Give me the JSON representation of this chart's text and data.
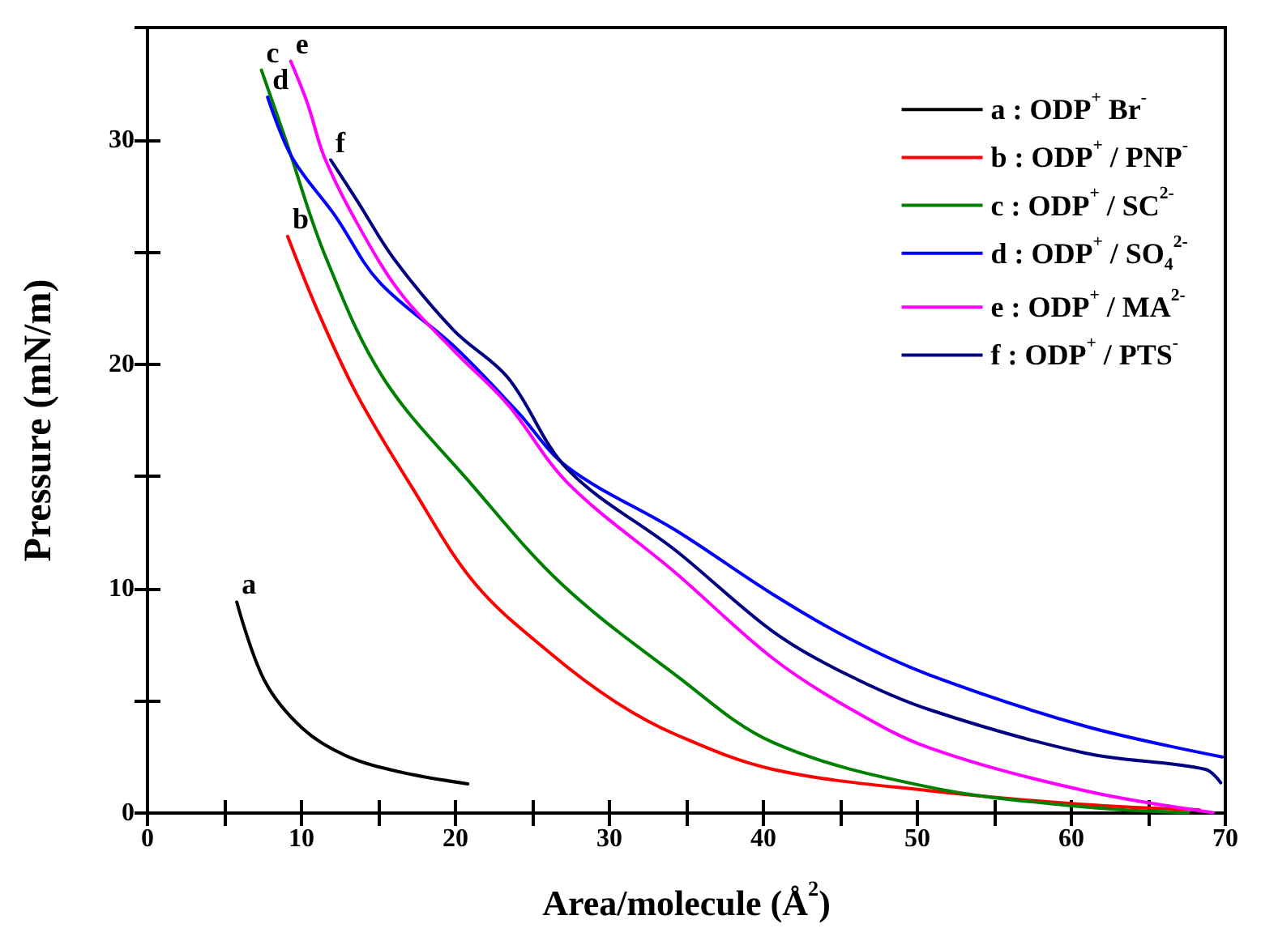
{
  "chart_data": {
    "type": "line",
    "xlabel": "Area/molecule (Å$^{2}$)",
    "ylabel": "Pressure (mN/m)",
    "xlim": [
      0,
      70
    ],
    "ylim": [
      0,
      35
    ],
    "xticks": [
      0,
      {
        "value": 5,
        "label": null
      },
      10,
      {
        "value": 15,
        "label": null
      },
      20,
      {
        "value": 25,
        "label": null
      },
      30,
      {
        "value": 35,
        "label": null
      },
      40,
      {
        "value": 45,
        "label": null
      },
      50,
      {
        "value": 55,
        "label": null
      },
      60,
      {
        "value": 65,
        "label": null
      },
      70
    ],
    "yticks": [
      0,
      {
        "value": 5,
        "label": null
      },
      10,
      {
        "value": 15,
        "label": null
      },
      20,
      {
        "value": 25,
        "label": null
      },
      30,
      {
        "value": 35,
        "label": null
      }
    ],
    "grid": false,
    "legend": "top right",
    "line_style": "solid",
    "marker": "none",
    "series": [
      {
        "name": "a : ODP$^{+}$ Br$^{-}$",
        "color": "#000000",
        "x": [
          5.8,
          7.6,
          10.1,
          12.9,
          16.4,
          20.8
        ],
        "values": [
          9.4,
          5.9,
          3.75,
          2.55,
          1.83,
          1.3
        ]
      },
      {
        "name": "b : ODP$^{+}$ / PNP$^{-}$",
        "color": "#ff0000",
        "x": [
          9.1,
          11.1,
          13.6,
          17.1,
          21.3,
          26.2,
          30.4,
          34.3,
          40.6,
          50.8,
          60.9,
          68.3
        ],
        "values": [
          25.7,
          22.3,
          18.65,
          14.6,
          10.2,
          7.1,
          4.95,
          3.5,
          1.95,
          0.99,
          0.38,
          0.14
        ]
      },
      {
        "name": "c : ODP$^{+}$ / SC$^{2-}$",
        "color": "#008000",
        "x": [
          7.4,
          9.0,
          11.5,
          15.3,
          21.1,
          26.9,
          34.3,
          40.6,
          50.8,
          60.9,
          67.6
        ],
        "values": [
          33.1,
          29.95,
          24.9,
          19.4,
          14.6,
          10.2,
          6.15,
          3.15,
          1.15,
          0.27,
          0.02
        ]
      },
      {
        "name": "d : ODP$^{+}$ / SO$_{4}$$^{2-}$",
        "color": "#0000ff",
        "x": [
          7.8,
          9.4,
          12.2,
          15.0,
          19.9,
          24.0,
          27.3,
          34.3,
          40.6,
          45.5,
          50.8,
          60.9,
          69.8
        ],
        "values": [
          31.9,
          29.2,
          26.6,
          23.7,
          20.8,
          17.9,
          15.4,
          12.6,
          9.75,
          7.8,
          6.15,
          3.87,
          2.5
        ]
      },
      {
        "name": "e : ODP$^{+}$ / MA$^{2-}$",
        "color": "#ff00ff",
        "x": [
          9.3,
          10.4,
          11.5,
          13.6,
          16.4,
          19.9,
          23.4,
          27.3,
          34.3,
          40.6,
          45.5,
          50.8,
          60.9,
          69.2
        ],
        "values": [
          33.5,
          31.6,
          29.2,
          26.3,
          23.2,
          20.6,
          18.2,
          14.7,
          10.7,
          6.9,
          4.7,
          2.9,
          0.99,
          0.02
        ]
      },
      {
        "name": "f : ODP$^{+}$ / PTS$^{-}$",
        "color": "#000080",
        "x": [
          11.9,
          13.6,
          16.0,
          19.9,
          23.4,
          27.3,
          34.3,
          40.6,
          45.5,
          50.8,
          60.9,
          68.7,
          69.7
        ],
        "values": [
          29.1,
          27.3,
          24.7,
          21.5,
          19.4,
          15.3,
          11.7,
          8.1,
          6.15,
          4.6,
          2.67,
          1.95,
          1.35
        ]
      }
    ],
    "annotations": [
      {
        "text": "a",
        "x": 5.8,
        "y": 9.4
      },
      {
        "text": "b",
        "x": 9.1,
        "y": 25.7
      },
      {
        "text": "c",
        "x": 7.4,
        "y": 33.1
      },
      {
        "text": "d",
        "x": 7.8,
        "y": 31.9
      },
      {
        "text": "e",
        "x": 9.3,
        "y": 33.5
      },
      {
        "text": "f",
        "x": 11.9,
        "y": 29.1
      }
    ]
  }
}
